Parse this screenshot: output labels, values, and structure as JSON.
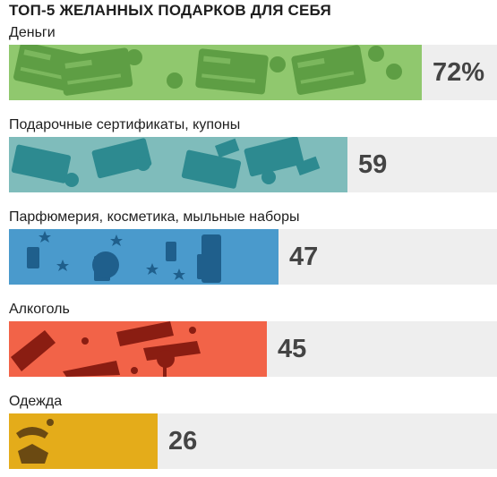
{
  "chart_data": {
    "type": "bar",
    "orientation": "horizontal",
    "title": "ТОП-5 ЖЕЛАННЫХ ПОДАРКОВ ДЛЯ СЕБЯ",
    "categories": [
      "Деньги",
      "Подарочные сертификаты, купоны",
      "Парфюмерия, косметика, мыльные наборы",
      "Алкоголь",
      "Одежда"
    ],
    "values": [
      72,
      59,
      47,
      45,
      26
    ],
    "value_labels": [
      "72%",
      "59",
      "47",
      "45",
      "26"
    ],
    "icons": [
      "money-icon",
      "coupon-icon",
      "perfume-icon",
      "wine-icon",
      "clothes-icon"
    ],
    "colors": [
      "#90c86e",
      "#7fbcbb",
      "#4a9acc",
      "#f26348",
      "#e4ac1a"
    ],
    "xlim": [
      0,
      72
    ]
  }
}
